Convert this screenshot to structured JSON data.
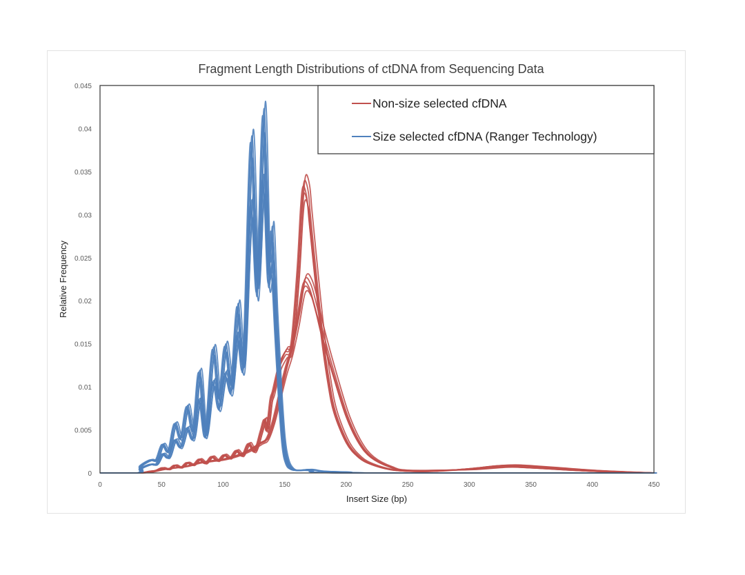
{
  "chart_data": {
    "type": "line",
    "title": "Fragment Length Distributions of ctDNA from Sequencing Data",
    "xlabel": "Insert Size (bp)",
    "ylabel": "Relative Frequency",
    "xlim": [
      0,
      450
    ],
    "ylim": [
      0,
      0.045
    ],
    "x_ticks": [
      "0",
      "50",
      "100",
      "150",
      "200",
      "250",
      "300",
      "350",
      "400",
      "450"
    ],
    "y_ticks": [
      "0",
      "0.005",
      "0.01",
      "0.015",
      "0.02",
      "0.025",
      "0.03",
      "0.035",
      "0.04",
      "0.045"
    ],
    "grid": false,
    "legend_placement": "top-right",
    "groups": [
      {
        "name": "Non-size selected cfDNA",
        "color": "#c0504d",
        "series": [
          {
            "x": [
              0,
              30,
              40,
              45,
              50,
              55,
              60,
              65,
              70,
              75,
              80,
              85,
              90,
              95,
              100,
              105,
              110,
              115,
              120,
              125,
              130,
              133,
              135,
              138,
              140,
              145,
              150,
              155,
              160,
              163,
              165,
              168,
              170,
              175,
              180,
              185,
              190,
              200,
              210,
              220,
              235,
              250,
              270,
              300,
              320,
              335,
              350,
              370,
              400,
              430,
              450
            ],
            "y": [
              0,
              0,
              0.0002,
              0.0003,
              0.0006,
              0.0004,
              0.0009,
              0.0006,
              0.0012,
              0.0009,
              0.0016,
              0.0011,
              0.0019,
              0.0014,
              0.0021,
              0.0017,
              0.0026,
              0.002,
              0.0034,
              0.0025,
              0.0048,
              0.0062,
              0.005,
              0.0085,
              0.0095,
              0.0125,
              0.014,
              0.015,
              0.0235,
              0.031,
              0.0333,
              0.032,
              0.029,
              0.022,
              0.0155,
              0.0105,
              0.007,
              0.0035,
              0.0018,
              0.001,
              0.0004,
              0.0002,
              0.0002,
              0.0005,
              0.0008,
              0.0009,
              0.0008,
              0.0006,
              0.0003,
              0.0001,
              0
            ]
          },
          {
            "x": [
              0,
              30,
              40,
              50,
              60,
              70,
              80,
              90,
              100,
              110,
              120,
              130,
              135,
              140,
              145,
              150,
              155,
              160,
              165,
              170,
              175,
              180,
              190,
              200,
              210,
              220,
              235,
              250,
              300,
              330,
              350,
              400,
              450
            ],
            "y": [
              0,
              0,
              0.0001,
              0.0004,
              0.0006,
              0.0008,
              0.0012,
              0.0014,
              0.0016,
              0.002,
              0.0026,
              0.0035,
              0.004,
              0.006,
              0.009,
              0.012,
              0.0145,
              0.018,
              0.022,
              0.0215,
              0.019,
              0.016,
              0.011,
              0.0065,
              0.0035,
              0.0018,
              0.0007,
              0.0003,
              0.0004,
              0.0007,
              0.0006,
              0.0002,
              0
            ]
          }
        ]
      },
      {
        "name": "Size selected cfDNA (Ranger Technology)",
        "color": "#4f81bd",
        "series": [
          {
            "x": [
              0,
              30,
              32,
              40,
              45,
              50,
              55,
              60,
              65,
              70,
              75,
              80,
              85,
              91,
              96,
              101,
              106,
              111,
              116,
              122,
              127,
              132,
              136,
              139,
              142,
              145,
              148,
              151,
              155,
              160,
              170,
              180,
              200,
              230,
              450
            ],
            "y": [
              0,
              0,
              0.0008,
              0.0015,
              0.0015,
              0.0033,
              0.0025,
              0.0057,
              0.004,
              0.0077,
              0.005,
              0.0117,
              0.0048,
              0.0143,
              0.0088,
              0.0147,
              0.0105,
              0.0193,
              0.0135,
              0.0383,
              0.0225,
              0.0415,
              0.024,
              0.028,
              0.018,
              0.01,
              0.004,
              0.0015,
              0.0005,
              0.0003,
              0.0004,
              0.0002,
              0.0001,
              0,
              0
            ]
          },
          {
            "x": [
              0,
              30,
              32,
              40,
              45,
              50,
              55,
              60,
              65,
              70,
              75,
              80,
              85,
              91,
              96,
              101,
              106,
              111,
              116,
              122,
              127,
              132,
              136,
              139,
              142,
              145,
              148,
              151,
              155,
              160,
              170,
              200,
              450
            ],
            "y": [
              0,
              0,
              0.0005,
              0.001,
              0.001,
              0.0022,
              0.0018,
              0.0038,
              0.003,
              0.0052,
              0.004,
              0.0085,
              0.0042,
              0.0105,
              0.0075,
              0.0115,
              0.0095,
              0.016,
              0.0125,
              0.031,
              0.021,
              0.034,
              0.0225,
              0.0235,
              0.016,
              0.0085,
              0.003,
              0.001,
              0.0004,
              0.0003,
              0.0003,
              0,
              0
            ]
          }
        ]
      }
    ]
  }
}
